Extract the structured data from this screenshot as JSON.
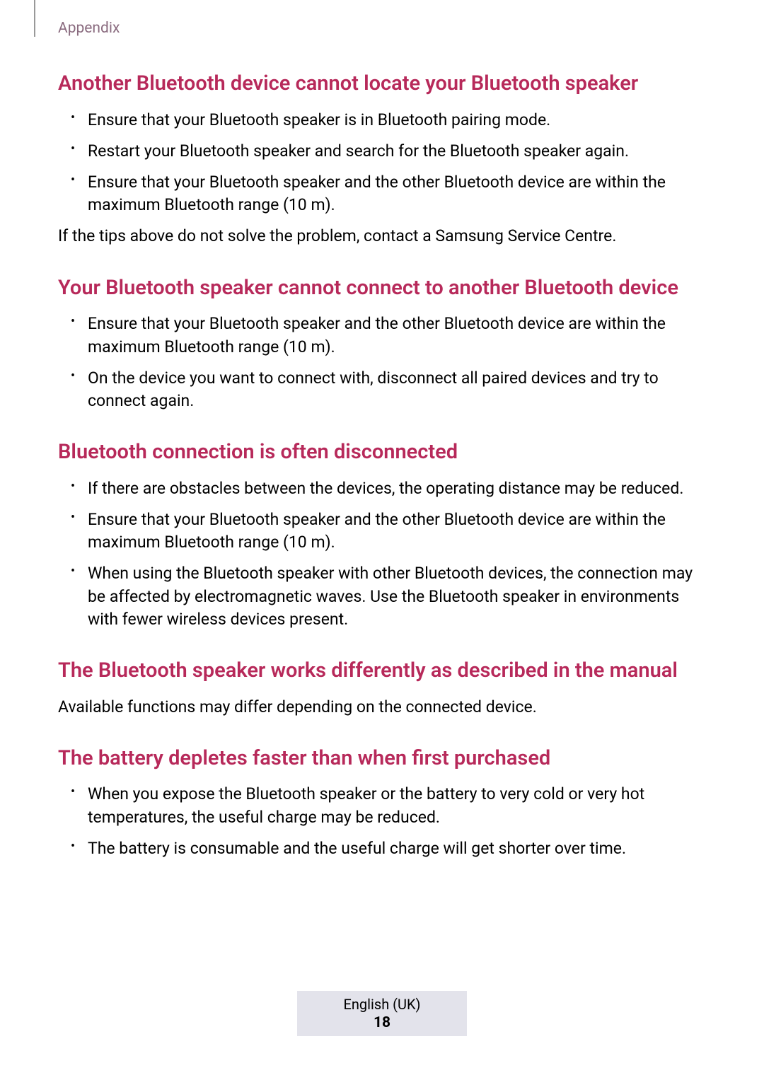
{
  "header": {
    "section_name": "Appendix"
  },
  "colors": {
    "heading_color": "#b7295a",
    "header_text_color": "#8a6b7f",
    "body_text_color": "#000000",
    "footer_bg": "#e3e3eb",
    "rule_color": "#999999"
  },
  "typography": {
    "heading_size": 29,
    "body_size": 23,
    "header_label_size": 21
  },
  "sections": [
    {
      "heading": "Another Bluetooth device cannot locate your Bluetooth speaker",
      "bullets": [
        "Ensure that your Bluetooth speaker is in Bluetooth pairing mode.",
        "Restart your Bluetooth speaker and search for the Bluetooth speaker again.",
        "Ensure that your Bluetooth speaker and the other Bluetooth device are within the maximum Bluetooth range (10 m)."
      ],
      "post_text": "If the tips above do not solve the problem, contact a Samsung Service Centre."
    },
    {
      "heading": "Your Bluetooth speaker cannot connect to another Bluetooth device",
      "bullets": [
        "Ensure that your Bluetooth speaker and the other Bluetooth device are within the maximum Bluetooth range (10 m).",
        "On the device you want to connect with, disconnect all paired devices and try to connect again."
      ]
    },
    {
      "heading": "Bluetooth connection is often disconnected",
      "bullets": [
        "If there are obstacles between the devices, the operating distance may be reduced.",
        "Ensure that your Bluetooth speaker and the other Bluetooth device are within the maximum Bluetooth range (10 m).",
        "When using the Bluetooth speaker with other Bluetooth devices, the connection may be affected by electromagnetic waves. Use the Bluetooth speaker in environments with fewer wireless devices present."
      ]
    },
    {
      "heading": "The Bluetooth speaker works differently as described in the manual",
      "body": "Available functions may differ depending on the connected device."
    },
    {
      "heading": "The battery depletes faster than when first purchased",
      "bullets": [
        "When you expose the Bluetooth speaker or the battery to very cold or very hot temperatures, the useful charge may be reduced.",
        "The battery is consumable and the useful charge will get shorter over time."
      ]
    }
  ],
  "footer": {
    "language": "English (UK)",
    "page_number": "18"
  }
}
